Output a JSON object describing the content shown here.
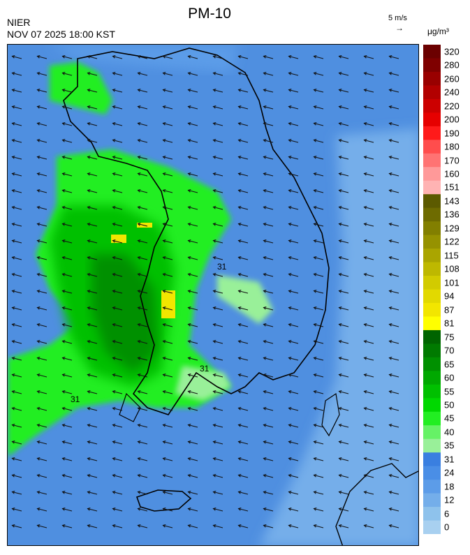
{
  "header": {
    "title": "PM-10",
    "agency": "NIER",
    "datetime": "NOV 07 2025 18:00 KST",
    "wind_ref_label": "5 m/s",
    "unit_label": "μg/m³"
  },
  "map": {
    "contour_label": "31",
    "sea_color": "#4f8fe0",
    "land_outline_color": "#000000"
  },
  "legend": {
    "bins": [
      {
        "label": "320",
        "color": "#6b0000"
      },
      {
        "label": "280",
        "color": "#7f0000"
      },
      {
        "label": "260",
        "color": "#990000"
      },
      {
        "label": "240",
        "color": "#b20000"
      },
      {
        "label": "220",
        "color": "#cc0000"
      },
      {
        "label": "200",
        "color": "#e60000"
      },
      {
        "label": "190",
        "color": "#ff1a1a"
      },
      {
        "label": "180",
        "color": "#ff4d4d"
      },
      {
        "label": "170",
        "color": "#ff7373"
      },
      {
        "label": "160",
        "color": "#ff9999"
      },
      {
        "label": "151",
        "color": "#ffb3b3"
      },
      {
        "label": "143",
        "color": "#5c5a00"
      },
      {
        "label": "136",
        "color": "#6e6b00"
      },
      {
        "label": "129",
        "color": "#827f00"
      },
      {
        "label": "122",
        "color": "#969200"
      },
      {
        "label": "115",
        "color": "#aaa500"
      },
      {
        "label": "108",
        "color": "#beb800"
      },
      {
        "label": "101",
        "color": "#d2cb00"
      },
      {
        "label": "94",
        "color": "#e2d900"
      },
      {
        "label": "87",
        "color": "#f2e600"
      },
      {
        "label": "81",
        "color": "#ffff00"
      },
      {
        "label": "75",
        "color": "#006400"
      },
      {
        "label": "70",
        "color": "#007a00"
      },
      {
        "label": "65",
        "color": "#009000"
      },
      {
        "label": "60",
        "color": "#00a800"
      },
      {
        "label": "55",
        "color": "#00c000"
      },
      {
        "label": "50",
        "color": "#00d800"
      },
      {
        "label": "45",
        "color": "#22ee22"
      },
      {
        "label": "40",
        "color": "#66f266"
      },
      {
        "label": "35",
        "color": "#99f099"
      },
      {
        "label": "31",
        "color": "#3a7fe0"
      },
      {
        "label": "24",
        "color": "#4a8ee6"
      },
      {
        "label": "18",
        "color": "#5c9ce8"
      },
      {
        "label": "12",
        "color": "#74aeea"
      },
      {
        "label": "6",
        "color": "#8ec2ec"
      },
      {
        "label": "0",
        "color": "#a8d0f0"
      }
    ]
  }
}
